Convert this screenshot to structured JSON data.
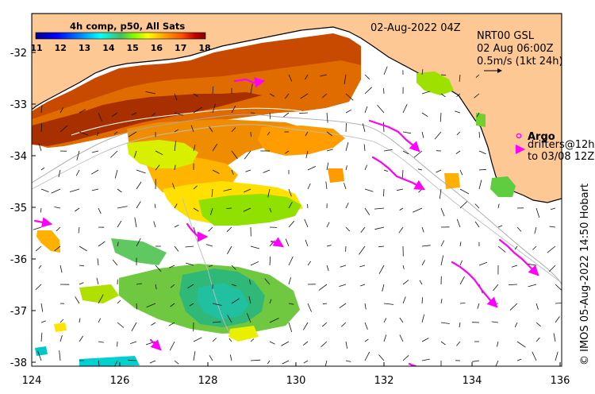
{
  "title_date": "02-Aug-2022 04Z",
  "colorbar": {
    "title": "4h comp, p50, All Sats",
    "ticks": [
      "11",
      "12",
      "13",
      "14",
      "15",
      "16",
      "17",
      "18"
    ]
  },
  "currents": {
    "source": "NRT00 GSL",
    "time": "02 Aug 06:00Z",
    "scale": "0.5m/s (1kt 24h)"
  },
  "argo": {
    "label": "Argo",
    "drifters_line1": "drifters@12h",
    "drifters_line2": "to 03/08 12Z"
  },
  "credit": "© IMOS 05-Aug-2022 14:50 Hobart",
  "axes": {
    "x_ticks": [
      "124",
      "126",
      "128",
      "130",
      "132",
      "134",
      "136"
    ],
    "y_ticks": [
      "-32",
      "-33",
      "-34",
      "-35",
      "-36",
      "-37",
      "-38"
    ]
  },
  "colors": {
    "land": "#fdc894",
    "drifter": "#ff00ff",
    "cmap": [
      "#00008f",
      "#0000ff",
      "#0080ff",
      "#00ffff",
      "#40c060",
      "#80ff00",
      "#ffff00",
      "#ffa000",
      "#ff5000",
      "#c00000",
      "#800000"
    ]
  }
}
